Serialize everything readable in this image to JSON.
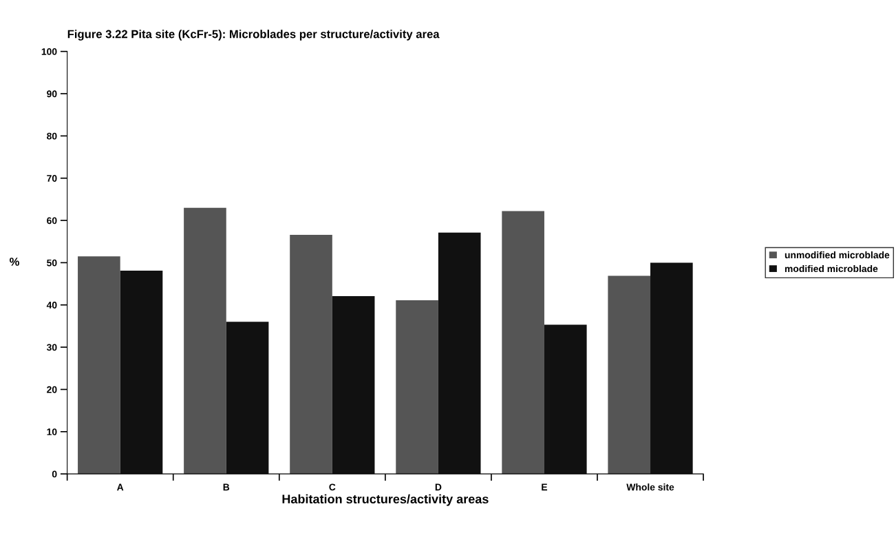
{
  "chart_data": {
    "type": "bar",
    "title": "Figure 3.22 Pita site (KcFr-5): Microblades per structure/activity area",
    "xlabel": "Habitation structures/activity areas",
    "ylabel": "%",
    "categories": [
      "A",
      "B",
      "C",
      "D",
      "E",
      "Whole site"
    ],
    "series": [
      {
        "name": "unmodified microblade",
        "color": "#555555",
        "values": [
          51.5,
          63,
          56.6,
          41.1,
          62.2,
          46.9
        ]
      },
      {
        "name": "modified microblade",
        "color": "#111111",
        "values": [
          48.1,
          36,
          42.1,
          57.1,
          35.3,
          50
        ]
      }
    ],
    "ylim": [
      0,
      100
    ],
    "yticks": [
      0,
      10,
      20,
      30,
      40,
      50,
      60,
      70,
      80,
      90,
      100
    ],
    "grid": false,
    "legend": "right"
  }
}
